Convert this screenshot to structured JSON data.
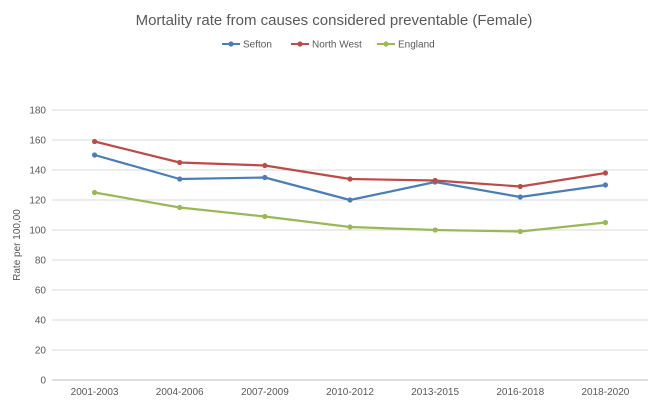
{
  "chart_data": {
    "type": "line",
    "title": "Mortality rate from causes considered preventable (Female)",
    "xlabel": "",
    "ylabel": "Rate per 100,00",
    "categories": [
      "2001-2003",
      "2004-2006",
      "2007-2009",
      "2010-2012",
      "2013-2015",
      "2016-2018",
      "2018-2020"
    ],
    "ylim": [
      0,
      180
    ],
    "yticks": [
      0,
      20,
      40,
      60,
      80,
      100,
      120,
      140,
      160,
      180
    ],
    "grid": true,
    "legend_position": "top",
    "series": [
      {
        "name": "Sefton",
        "color": "#4a7ebb",
        "values": [
          150,
          134,
          135,
          120,
          132,
          122,
          130
        ]
      },
      {
        "name": "North West",
        "color": "#be4b48",
        "values": [
          159,
          145,
          143,
          134,
          133,
          129,
          138
        ]
      },
      {
        "name": "England",
        "color": "#98b954",
        "values": [
          125,
          115,
          109,
          102,
          100,
          99,
          105
        ]
      }
    ]
  }
}
